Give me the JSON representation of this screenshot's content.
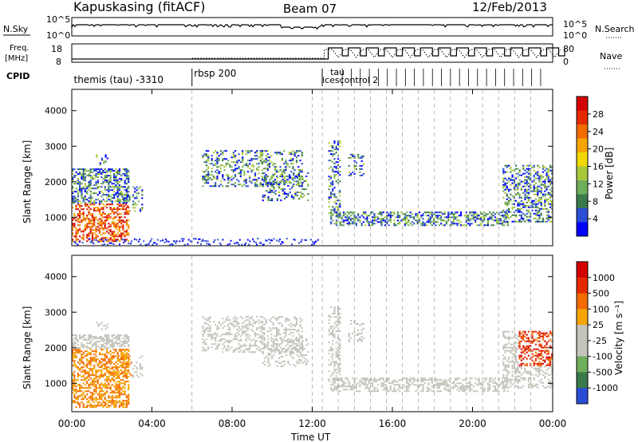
{
  "header": {
    "station": "Kapuskasing (fitACF)",
    "beam": "Beam 07",
    "date": "12/Feb/2013"
  },
  "top_panels": {
    "nsky_label": "N.Sky",
    "nsky_ticks": [
      "10^5",
      "10^0"
    ],
    "nsky_right_ticks": [
      "10^5",
      "10^0"
    ],
    "nsearch_label": "N.Search",
    "freq_label_1": "Freq.",
    "freq_label_2": "[MHz]",
    "freq_ticks": [
      "18",
      "8"
    ],
    "nave_ticks": [
      "80",
      "0"
    ],
    "nave_label": "Nave",
    "cpid_label": "CPID"
  },
  "cpid_segments": [
    {
      "label": "themis (tau) -3310",
      "start_hour": 0.0
    },
    {
      "label": "rbsp 200",
      "start_hour": 6.0
    },
    {
      "label": "tau",
      "start_hour": 12.6
    },
    {
      "label": "icescontrol 2",
      "start_hour": 12.5
    }
  ],
  "x_axis": {
    "label": "Time UT",
    "ticks": [
      "00:00",
      "04:00",
      "08:00",
      "12:00",
      "16:00",
      "20:00",
      "00:00"
    ],
    "tick_hours": [
      0,
      4,
      8,
      12,
      16,
      20,
      24
    ]
  },
  "chart_data": [
    {
      "type": "heatmap",
      "name": "power",
      "ylabel": "Slant Range [km]",
      "yticks": [
        "4000",
        "3000",
        "2000",
        "1000"
      ],
      "ylim": [
        200,
        4600
      ],
      "xlim": [
        0,
        24
      ],
      "colorbar_label": "Power [dB]",
      "colorbar_ticks": [
        "28",
        "24",
        "20",
        "16",
        "12",
        "8",
        "4"
      ],
      "colors": [
        "#0000ff",
        "#2a4dd6",
        "#3a7a4a",
        "#6fae5b",
        "#a8c83a",
        "#f0d800",
        "#f5a500",
        "#f26a00",
        "#e52a00",
        "#d40000"
      ]
    },
    {
      "type": "heatmap",
      "name": "velocity",
      "ylabel": "Slant Range [km]",
      "yticks": [
        "4000",
        "3000",
        "2000",
        "1000"
      ],
      "ylim": [
        200,
        4600
      ],
      "xlim": [
        0,
        24
      ],
      "colorbar_label": "Velocity [m s⁻¹]",
      "colorbar_ticks": [
        "1000",
        "500",
        "100",
        "25",
        "-25",
        "-100",
        "-500",
        "-1000"
      ],
      "colors": [
        "#2a4dd6",
        "#3a7a4a",
        "#6fae5b",
        "#c4c4bc",
        "#c4c4bc",
        "#f5a500",
        "#f26a00",
        "#e52a00",
        "#d40000"
      ]
    }
  ]
}
